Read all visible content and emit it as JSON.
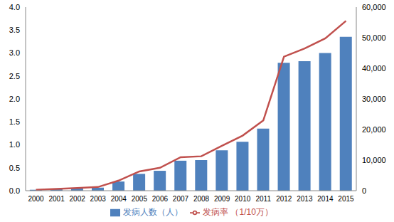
{
  "chart_data": {
    "type": "bar_line",
    "categories": [
      "2000",
      "2001",
      "2002",
      "2003",
      "2004",
      "2005",
      "2006",
      "2007",
      "2008",
      "2009",
      "2010",
      "2011",
      "2012",
      "2013",
      "2014",
      "2015"
    ],
    "series": [
      {
        "name": "发病人数（人）",
        "type": "bar",
        "axis": "y2",
        "color": "#4f81bd",
        "values": [
          300,
          500,
          800,
          1000,
          3000,
          5500,
          6500,
          9800,
          10000,
          13200,
          16000,
          20300,
          41800,
          42300,
          45000,
          50300
        ]
      },
      {
        "name": "发病率 （1/10万）",
        "type": "line",
        "axis": "y",
        "color": "#c0504d",
        "values": [
          0.02,
          0.04,
          0.06,
          0.08,
          0.22,
          0.42,
          0.5,
          0.73,
          0.75,
          0.98,
          1.2,
          1.53,
          2.92,
          3.1,
          3.32,
          3.7
        ]
      }
    ],
    "ylim": [
      0,
      4
    ],
    "yticks": [
      {
        "value": 0,
        "label": "0.0"
      },
      {
        "value": 0.5,
        "label": "0.5"
      },
      {
        "value": 1,
        "label": "1.0"
      },
      {
        "value": 1.5,
        "label": "1.5"
      },
      {
        "value": 2,
        "label": "2.0"
      },
      {
        "value": 2.5,
        "label": "2.5"
      },
      {
        "value": 3,
        "label": "3.0"
      },
      {
        "value": 3.5,
        "label": "3.5"
      },
      {
        "value": 4,
        "label": "4.0"
      }
    ],
    "y2lim": [
      0,
      60000
    ],
    "y2ticks": [
      0,
      {
        "value": 10000,
        "label": "10,000"
      },
      {
        "value": 20000,
        "label": "20,000"
      },
      {
        "value": 30000,
        "label": "30,000"
      },
      {
        "value": 40000,
        "label": "40,000"
      },
      {
        "value": 50000,
        "label": "50,000"
      },
      {
        "value": 60000,
        "label": "60,000"
      }
    ],
    "grid": false,
    "legend": "bottom"
  }
}
